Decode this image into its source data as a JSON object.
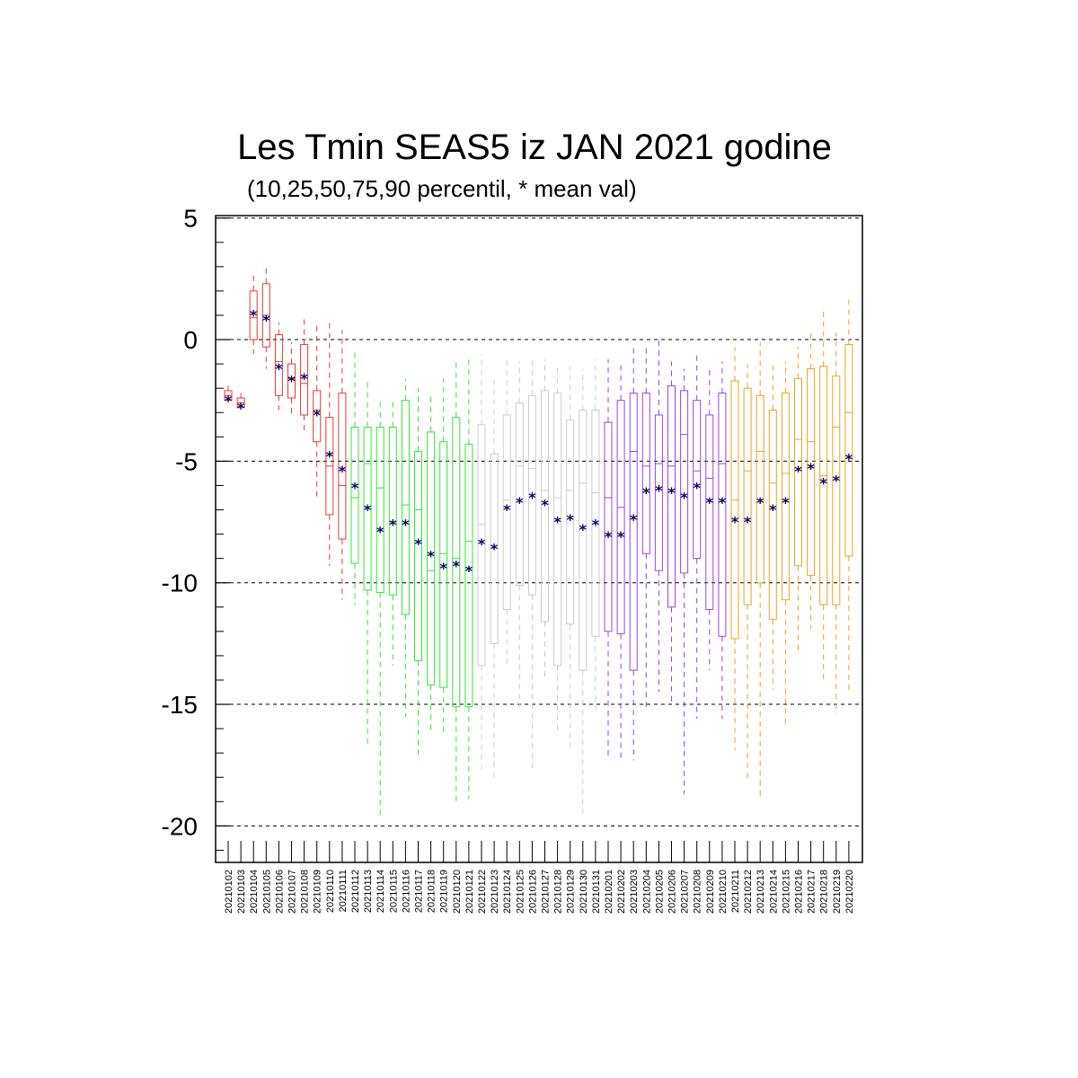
{
  "chart_data": {
    "type": "boxplot",
    "title": "Les Tmin SEAS5 iz JAN 2021 godine",
    "subtitle": "(10,25,50,75,90 percentil, * mean val)",
    "ylim": [
      -21.5,
      5.1
    ],
    "yticks": [
      5,
      0,
      -5,
      -10,
      -15,
      -20
    ],
    "ytick_labels": [
      "5",
      "0",
      "-5",
      "-10",
      "-15",
      "-20"
    ],
    "grid": "dashed horizontal at major ticks",
    "mean_marker": "*",
    "mean_color": "#000066",
    "group_colors": [
      "#e8382f",
      "#2fe82f",
      "#cccccc",
      "#a040e0",
      "#f0a020"
    ],
    "categories": [
      "20210102",
      "20210103",
      "20210104",
      "20210105",
      "20210106",
      "20210107",
      "20210108",
      "20210109",
      "20210110",
      "20210111",
      "20210112",
      "20210113",
      "20210114",
      "20210115",
      "20210116",
      "20210117",
      "20210118",
      "20210119",
      "20210120",
      "20210121",
      "20210122",
      "20210123",
      "20210124",
      "20210125",
      "20210126",
      "20210127",
      "20210128",
      "20210129",
      "20210130",
      "20210131",
      "20210201",
      "20210202",
      "20210203",
      "20210204",
      "20210205",
      "20210206",
      "20210207",
      "20210208",
      "20210209",
      "20210210",
      "20210211",
      "20210212",
      "20210213",
      "20210214",
      "20210215",
      "20210216",
      "20210217",
      "20210218",
      "20210219",
      "20210220"
    ],
    "groups": [
      0,
      0,
      0,
      0,
      0,
      0,
      0,
      0,
      0,
      0,
      1,
      1,
      1,
      1,
      1,
      1,
      1,
      1,
      1,
      1,
      2,
      2,
      2,
      2,
      2,
      2,
      2,
      2,
      2,
      2,
      3,
      3,
      3,
      3,
      3,
      3,
      3,
      3,
      3,
      3,
      4,
      4,
      4,
      4,
      4,
      4,
      4,
      4,
      4,
      4
    ],
    "p10": [
      -2.6,
      -2.9,
      -0.6,
      -1.2,
      -2.9,
      -3.1,
      -3.8,
      -6.5,
      -9.3,
      -10.7,
      -10.9,
      -16.8,
      -19.6,
      -13.4,
      -15.5,
      -17.2,
      -16.1,
      -16.3,
      -19.0,
      -18.9,
      -17.7,
      -18.2,
      -13.5,
      -15.1,
      -17.8,
      -14.0,
      -16.2,
      -16.9,
      -19.5,
      -15.3,
      -17.1,
      -17.3,
      -17.3,
      -15.3,
      -14.5,
      -14.9,
      -18.7,
      -15.6,
      -13.6,
      -15.6,
      -16.9,
      -18.2,
      -18.9,
      -14.4,
      -15.9,
      -12.9,
      -11.9,
      -14.1,
      -15.4,
      -14.6
    ],
    "p25": [
      -2.5,
      -2.8,
      0.0,
      -0.3,
      -2.3,
      -2.4,
      -3.1,
      -4.2,
      -7.2,
      -8.2,
      -9.2,
      -10.3,
      -10.4,
      -10.5,
      -11.3,
      -13.2,
      -14.2,
      -14.3,
      -15.1,
      -15.1,
      -13.4,
      -12.5,
      -11.1,
      -10.1,
      -10.5,
      -11.6,
      -13.4,
      -11.7,
      -13.6,
      -12.2,
      -12.0,
      -12.1,
      -13.6,
      -8.8,
      -9.5,
      -11.0,
      -9.6,
      -9.0,
      -11.1,
      -12.2,
      -12.3,
      -10.9,
      -10.0,
      -11.5,
      -10.7,
      -9.3,
      -9.7,
      -10.9,
      -10.9,
      -8.9
    ],
    "p50": [
      -2.3,
      -2.6,
      0.9,
      1.0,
      -0.9,
      -1.6,
      -1.8,
      -2.9,
      -5.2,
      -6.0,
      -6.5,
      -5.1,
      -6.1,
      -7.5,
      -6.8,
      -7.0,
      -9.5,
      -8.8,
      -9.0,
      -8.3,
      -7.6,
      -8.5,
      -6.6,
      -5.2,
      -5.3,
      -6.2,
      -6.5,
      -6.2,
      -5.9,
      -6.3,
      -6.5,
      -6.9,
      -4.6,
      -5.2,
      -5.1,
      -5.2,
      -3.9,
      -5.4,
      -5.7,
      -5.1,
      -6.6,
      -5.4,
      -4.6,
      -5.9,
      -5.5,
      -4.1,
      -4.2,
      -5.6,
      -3.6,
      -3.0
    ],
    "p75": [
      -2.1,
      -2.4,
      2.0,
      2.3,
      0.2,
      -1.0,
      -0.2,
      -2.1,
      -3.2,
      -2.2,
      -3.6,
      -3.6,
      -3.6,
      -3.6,
      -2.5,
      -4.6,
      -3.8,
      -4.2,
      -3.2,
      -4.3,
      -3.5,
      -4.7,
      -3.1,
      -2.6,
      -2.3,
      -2.1,
      -2.2,
      -3.3,
      -2.9,
      -2.9,
      -3.4,
      -2.5,
      -2.2,
      -2.2,
      -3.1,
      -1.9,
      -2.1,
      -2.5,
      -3.1,
      -2.2,
      -1.7,
      -2.0,
      -2.3,
      -2.9,
      -2.2,
      -1.6,
      -1.2,
      -1.1,
      -1.5,
      -0.2
    ],
    "p90": [
      -1.9,
      -2.2,
      2.7,
      3.1,
      0.7,
      -0.1,
      0.9,
      0.7,
      0.8,
      0.4,
      -0.5,
      -1.6,
      -2.4,
      -2.4,
      -1.6,
      -2.0,
      -2.3,
      -1.6,
      -0.8,
      -0.8,
      -0.6,
      -1.6,
      -0.8,
      -0.9,
      -0.8,
      -0.8,
      -1.0,
      -1.1,
      -1.2,
      -0.8,
      -0.8,
      -0.9,
      -0.3,
      -0.3,
      0.1,
      -0.9,
      -1.2,
      -0.6,
      -1.1,
      -0.9,
      -0.3,
      -1.0,
      -0.1,
      -0.9,
      -0.9,
      -0.3,
      0.3,
      1.2,
      0.3,
      1.8
    ],
    "mean": [
      -2.3,
      -2.6,
      1.2,
      1.0,
      -1.0,
      -1.5,
      -1.4,
      -2.9,
      -4.6,
      -5.2,
      -5.9,
      -6.8,
      -7.7,
      -7.4,
      -7.4,
      -8.2,
      -8.7,
      -9.2,
      -9.1,
      -9.3,
      -8.2,
      -8.4,
      -6.8,
      -6.5,
      -6.3,
      -6.6,
      -7.3,
      -7.2,
      -7.6,
      -7.4,
      -7.9,
      -7.9,
      -7.2,
      -6.1,
      -6.0,
      -6.1,
      -6.3,
      -5.9,
      -6.5,
      -6.5,
      -7.3,
      -7.3,
      -6.5,
      -6.8,
      -6.5,
      -5.2,
      -5.1,
      -5.7,
      -5.6,
      -4.7
    ]
  }
}
